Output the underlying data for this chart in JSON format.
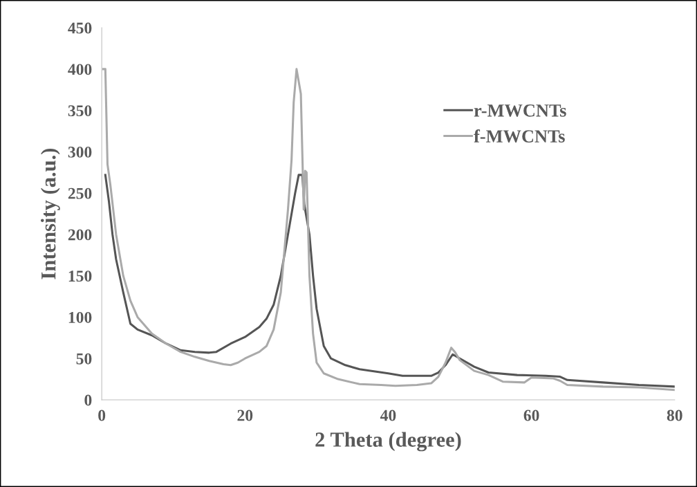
{
  "chart_data": {
    "type": "line",
    "xlabel": "2 Theta (degree)",
    "ylabel": "Intensity (a.u.)",
    "xlim": [
      0,
      80
    ],
    "xticks": [
      0,
      20,
      40,
      60,
      80
    ],
    "ylim": [
      0,
      450
    ],
    "yticks": [
      0,
      50,
      100,
      150,
      200,
      250,
      300,
      350,
      400,
      450
    ],
    "grid": false,
    "legend": "top right",
    "marker": "none",
    "line_style": "solid",
    "series": [
      {
        "name": "r-MWCNTs",
        "color": "#555555",
        "x": [
          0.5,
          1,
          1.5,
          2,
          3,
          4,
          5,
          7,
          9,
          11,
          13,
          15,
          16,
          18,
          20,
          22,
          23,
          24,
          25,
          26,
          27,
          27.5,
          28,
          28.3,
          29,
          29.5,
          30,
          31,
          32,
          34,
          36,
          40,
          42,
          46,
          47,
          48,
          49,
          50,
          52,
          54,
          58,
          62,
          64,
          65,
          70,
          75,
          80
        ],
        "values": [
          272,
          240,
          200,
          170,
          130,
          92,
          85,
          78,
          68,
          60,
          58,
          57,
          58,
          68,
          76,
          88,
          98,
          115,
          150,
          200,
          250,
          272,
          272,
          235,
          200,
          150,
          110,
          65,
          50,
          42,
          37,
          32,
          29,
          29,
          33,
          42,
          55,
          50,
          40,
          33,
          30,
          29,
          28,
          24,
          21,
          18,
          16
        ]
      },
      {
        "name": "f-MWCNTs",
        "color": "#aaaaaa",
        "x": [
          0.2,
          0.5,
          0.8,
          1.2,
          2,
          3,
          4,
          5,
          7,
          9,
          11,
          13,
          15,
          17,
          18,
          19,
          20,
          22,
          23,
          24,
          25,
          26,
          26.5,
          26.8,
          27.2,
          27.6,
          27.8,
          28,
          28.2,
          28.4,
          28.6,
          29,
          29.5,
          30,
          31,
          33,
          36,
          39,
          41,
          44,
          46,
          47,
          48,
          48.8,
          49.3,
          50,
          52,
          54,
          56,
          59,
          60,
          63,
          64,
          65,
          70,
          75,
          80
        ],
        "values": [
          400,
          400,
          285,
          260,
          200,
          150,
          120,
          100,
          80,
          68,
          58,
          52,
          47,
          43,
          42,
          45,
          50,
          58,
          65,
          85,
          130,
          230,
          290,
          360,
          400,
          380,
          370,
          300,
          230,
          277,
          275,
          150,
          80,
          45,
          32,
          25,
          19,
          18,
          17,
          18,
          20,
          28,
          45,
          63,
          58,
          48,
          35,
          30,
          22,
          21,
          27,
          26,
          23,
          18,
          16,
          15,
          12
        ]
      }
    ]
  }
}
